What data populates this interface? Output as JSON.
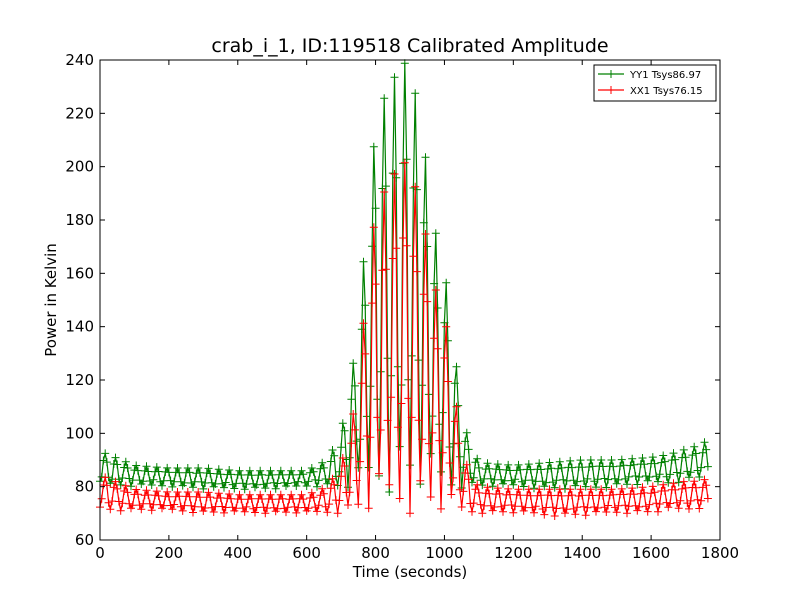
{
  "chart_data": {
    "type": "line",
    "title": "crab_i_1, ID:119518 Calibrated Amplitude",
    "xlabel": "Time (seconds)",
    "ylabel": "Power in Kelvin",
    "xlim": [
      0,
      1800
    ],
    "ylim": [
      60,
      240
    ],
    "xticks": [
      "0",
      "200",
      "400",
      "600",
      "800",
      "1000",
      "1200",
      "1400",
      "1600",
      "1800"
    ],
    "yticks": [
      "60",
      "80",
      "100",
      "120",
      "140",
      "160",
      "180",
      "200",
      "220",
      "240"
    ],
    "grid": false,
    "legend_position": "top-right",
    "series": [
      {
        "name": "YY1 Tsys86.97",
        "color": "#008000",
        "marker": "+",
        "envelope": {
          "x": [
            0,
            5,
            100,
            200,
            300,
            400,
            500,
            600,
            660,
            700,
            740,
            780,
            800,
            840,
            860,
            880,
            900,
            920,
            940,
            960,
            980,
            1000,
            1020,
            1040,
            1060,
            1080,
            1100,
            1200,
            1300,
            1400,
            1500,
            1600,
            1650,
            1700,
            1750,
            1765
          ],
          "upper": [
            85,
            93,
            88,
            87,
            87,
            86,
            86,
            86,
            90,
            100,
            130,
            185,
            215,
            232,
            234,
            240,
            235,
            225,
            208,
            190,
            170,
            162,
            140,
            120,
            102,
            95,
            89,
            88,
            89,
            90,
            90,
            91,
            92,
            94,
            96,
            98
          ],
          "lower": [
            82,
            80,
            80,
            80,
            79,
            79,
            79,
            80,
            80,
            79,
            79,
            78,
            78,
            78,
            78,
            78,
            78,
            78,
            78,
            78,
            78,
            78,
            78,
            79,
            80,
            80,
            80,
            80,
            79,
            79,
            80,
            81,
            81,
            82,
            83,
            82
          ]
        }
      },
      {
        "name": "XX1 Tsys76.15",
        "color": "#ff0000",
        "marker": "+",
        "envelope": {
          "x": [
            0,
            5,
            100,
            200,
            300,
            400,
            500,
            600,
            660,
            700,
            740,
            780,
            800,
            840,
            860,
            880,
            900,
            920,
            940,
            960,
            980,
            1000,
            1020,
            1040,
            1060,
            1080,
            1100,
            1200,
            1300,
            1400,
            1500,
            1600,
            1650,
            1700,
            1750,
            1765
          ],
          "upper": [
            76,
            84,
            79,
            78,
            78,
            77,
            77,
            77,
            80,
            88,
            110,
            160,
            183,
            195,
            198,
            202,
            200,
            190,
            178,
            165,
            150,
            145,
            125,
            105,
            90,
            83,
            80,
            79,
            79,
            79,
            79,
            80,
            81,
            82,
            82,
            84
          ],
          "lower": [
            72,
            71,
            71,
            71,
            70,
            70,
            70,
            70,
            70,
            70,
            70,
            70,
            70,
            70,
            70,
            70,
            70,
            70,
            70,
            70,
            70,
            70,
            70,
            70,
            70,
            70,
            70,
            70,
            69,
            69,
            70,
            70,
            71,
            71,
            72,
            72
          ]
        }
      }
    ]
  }
}
